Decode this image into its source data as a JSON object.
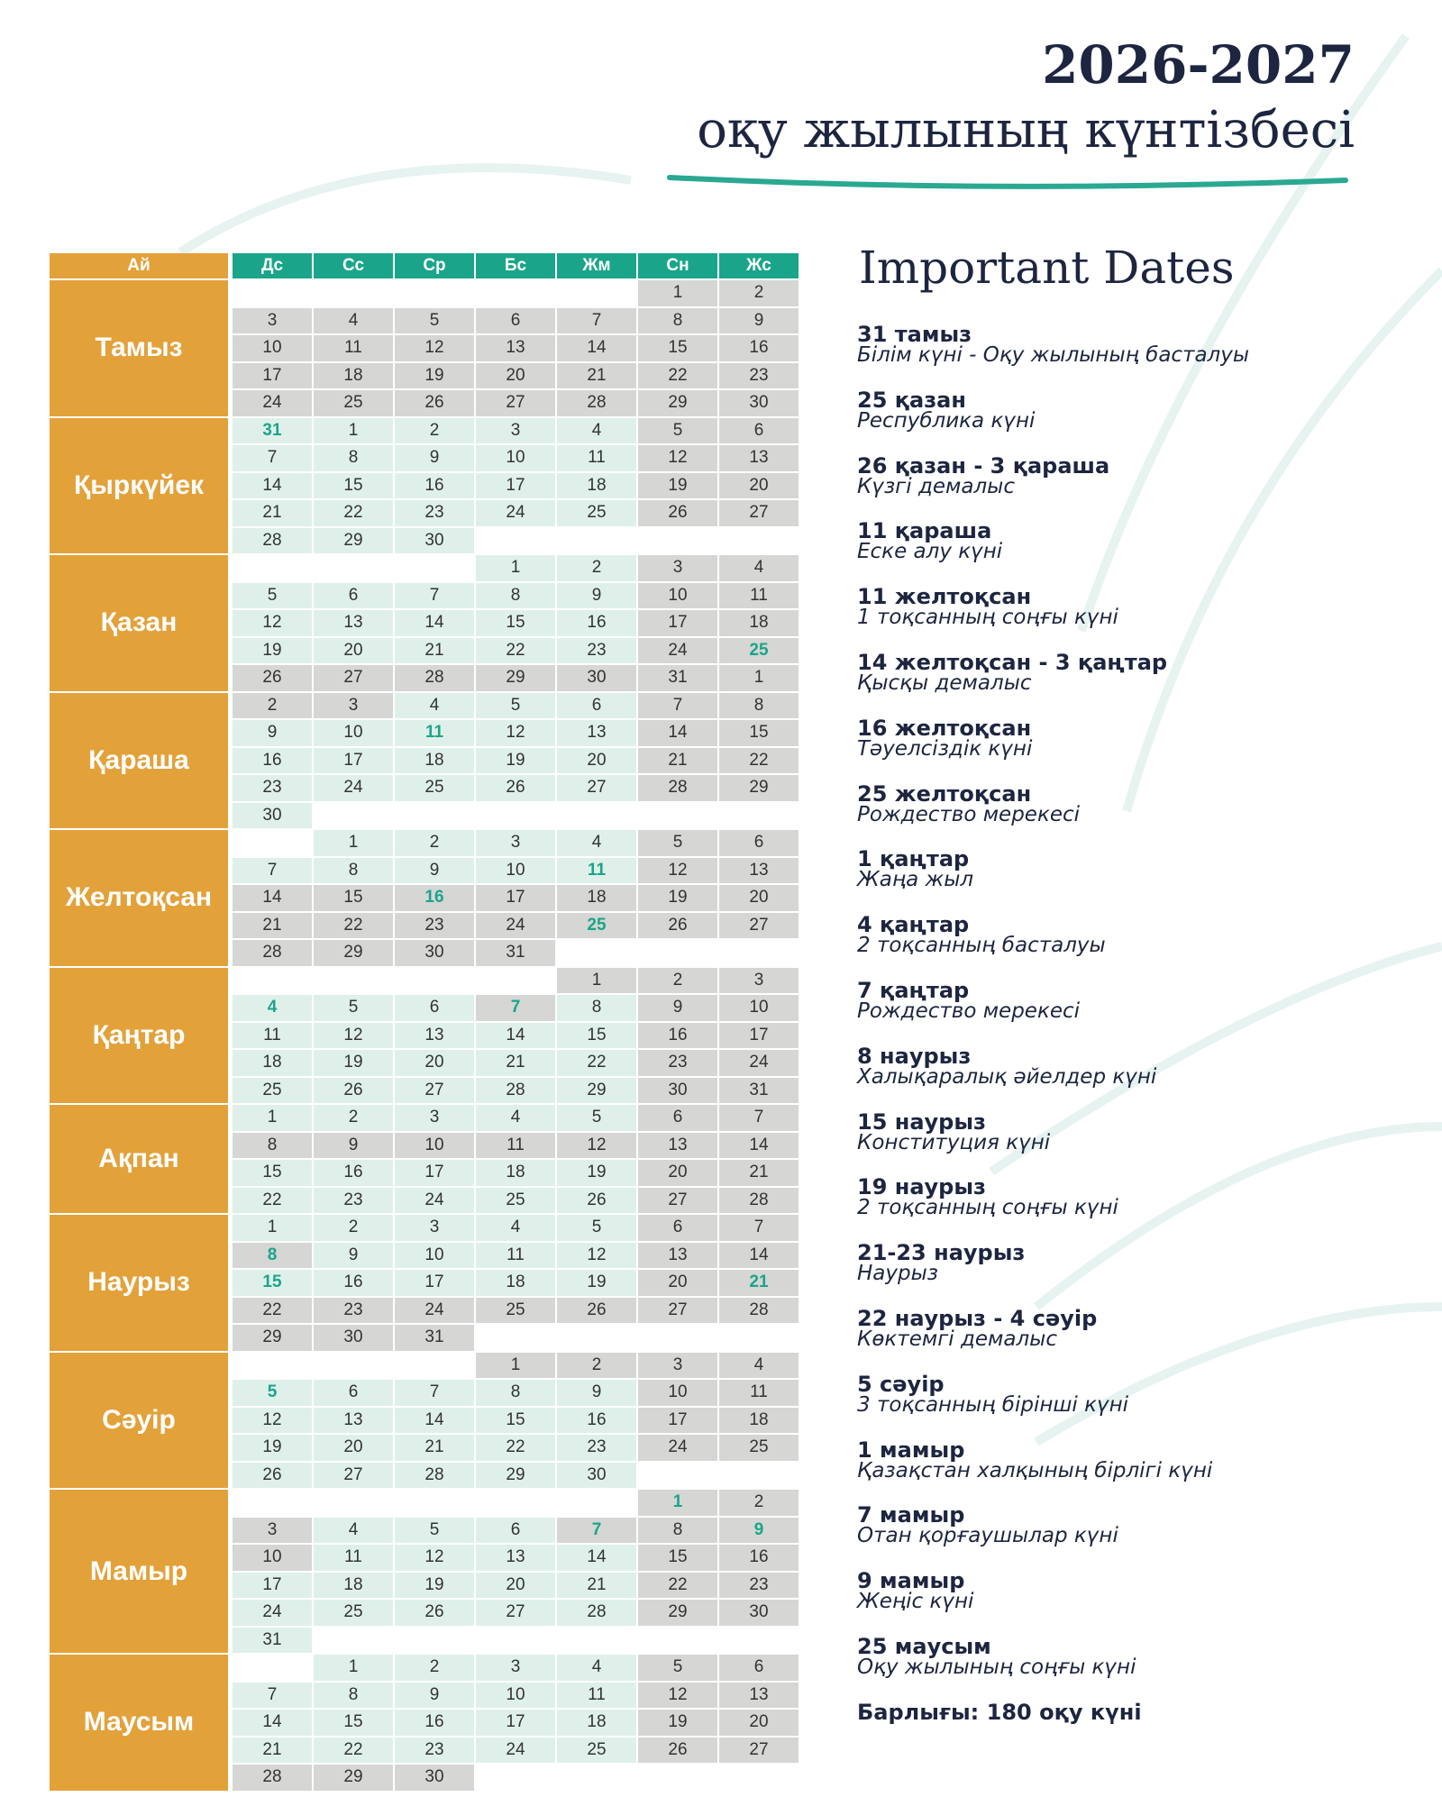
{
  "header": {
    "title_line1": "2026-2027",
    "title_line2": "оқу жылының күнтізбесі"
  },
  "table": {
    "month_header": "Ай",
    "weekdays": [
      "Дс",
      "Сс",
      "Ср",
      "Бс",
      "Жм",
      "Сн",
      "Жс"
    ],
    "palette": {
      "w": "#ffffff",
      "s": "#dff0ea",
      "g": "#d6d6d4",
      "S": "#dff0ea",
      "G": "#d6d6d4"
    },
    "highlight_color": "#1aa58a",
    "month_color": "#e3a13a",
    "header_color": "#1aa58a",
    "months": [
      {
        "name": "Тамыз",
        "rows": [
          [
            null,
            null,
            null,
            null,
            null,
            1,
            2
          ],
          [
            3,
            4,
            5,
            6,
            7,
            8,
            9
          ],
          [
            10,
            11,
            12,
            13,
            14,
            15,
            16
          ],
          [
            17,
            18,
            19,
            20,
            21,
            22,
            23
          ],
          [
            24,
            25,
            26,
            27,
            28,
            29,
            30
          ]
        ],
        "fill": [
          "wwwwwgg",
          "ggggggg",
          "ggggggg",
          "ggggggg",
          "ggggggg"
        ]
      },
      {
        "name": "Қыркүйек",
        "rows": [
          [
            31,
            1,
            2,
            3,
            4,
            5,
            6
          ],
          [
            7,
            8,
            9,
            10,
            11,
            12,
            13
          ],
          [
            14,
            15,
            16,
            17,
            18,
            19,
            20
          ],
          [
            21,
            22,
            23,
            24,
            25,
            26,
            27
          ],
          [
            28,
            29,
            30,
            null,
            null,
            null,
            null
          ]
        ],
        "fill": [
          "Sssssgg",
          "sssssgg",
          "sssssgg",
          "sssssgg",
          "ssswwww"
        ]
      },
      {
        "name": "Қазан",
        "rows": [
          [
            null,
            null,
            null,
            1,
            2,
            3,
            4
          ],
          [
            5,
            6,
            7,
            8,
            9,
            10,
            11
          ],
          [
            12,
            13,
            14,
            15,
            16,
            17,
            18
          ],
          [
            19,
            20,
            21,
            22,
            23,
            24,
            25
          ],
          [
            26,
            27,
            28,
            29,
            30,
            31,
            1
          ]
        ],
        "fill": [
          "wwwssgg",
          "sssssgg",
          "sssssgg",
          "sssssgG",
          "ggggggg"
        ]
      },
      {
        "name": "Қараша",
        "rows": [
          [
            2,
            3,
            4,
            5,
            6,
            7,
            8
          ],
          [
            9,
            10,
            11,
            12,
            13,
            14,
            15
          ],
          [
            16,
            17,
            18,
            19,
            20,
            21,
            22
          ],
          [
            23,
            24,
            25,
            26,
            27,
            28,
            29
          ],
          [
            30,
            null,
            null,
            null,
            null,
            null,
            null
          ]
        ],
        "fill": [
          "ggsssgg",
          "ssSssgg",
          "sssssgg",
          "sssssgg",
          "swwwwww"
        ]
      },
      {
        "name": "Желтоқсан",
        "rows": [
          [
            null,
            1,
            2,
            3,
            4,
            5,
            6
          ],
          [
            7,
            8,
            9,
            10,
            11,
            12,
            13
          ],
          [
            14,
            15,
            16,
            17,
            18,
            19,
            20
          ],
          [
            21,
            22,
            23,
            24,
            25,
            26,
            27
          ],
          [
            28,
            29,
            30,
            31,
            null,
            null,
            null
          ]
        ],
        "fill": [
          "wssssgg",
          "ssssSgg",
          "ggGgggg",
          "ggggGgg",
          "ggggwww"
        ]
      },
      {
        "name": "Қаңтар",
        "rows": [
          [
            null,
            null,
            null,
            null,
            1,
            2,
            3
          ],
          [
            4,
            5,
            6,
            7,
            8,
            9,
            10
          ],
          [
            11,
            12,
            13,
            14,
            15,
            16,
            17
          ],
          [
            18,
            19,
            20,
            21,
            22,
            23,
            24
          ],
          [
            25,
            26,
            27,
            28,
            29,
            30,
            31
          ]
        ],
        "fill": [
          "wwwwggg",
          "SssGsgg",
          "sssssgg",
          "sssssgg",
          "sssssgg"
        ]
      },
      {
        "name": "Ақпан",
        "rows": [
          [
            1,
            2,
            3,
            4,
            5,
            6,
            7
          ],
          [
            8,
            9,
            10,
            11,
            12,
            13,
            14
          ],
          [
            15,
            16,
            17,
            18,
            19,
            20,
            21
          ],
          [
            22,
            23,
            24,
            25,
            26,
            27,
            28
          ]
        ],
        "fill": [
          "sssssgg",
          "ggggggg",
          "sssssgg",
          "sssssgg"
        ]
      },
      {
        "name": "Наурыз",
        "rows": [
          [
            1,
            2,
            3,
            4,
            5,
            6,
            7
          ],
          [
            8,
            9,
            10,
            11,
            12,
            13,
            14
          ],
          [
            15,
            16,
            17,
            18,
            19,
            20,
            21
          ],
          [
            22,
            23,
            24,
            25,
            26,
            27,
            28
          ],
          [
            29,
            30,
            31,
            null,
            null,
            null,
            null
          ]
        ],
        "fill": [
          "sssssgg",
          "Gssssgg",
          "SssssgG",
          "ggggggg",
          "gggwwww"
        ]
      },
      {
        "name": "Сәуір",
        "rows": [
          [
            null,
            null,
            null,
            1,
            2,
            3,
            4
          ],
          [
            5,
            6,
            7,
            8,
            9,
            10,
            11
          ],
          [
            12,
            13,
            14,
            15,
            16,
            17,
            18
          ],
          [
            19,
            20,
            21,
            22,
            23,
            24,
            25
          ],
          [
            26,
            27,
            28,
            29,
            30,
            null,
            null
          ]
        ],
        "fill": [
          "wwwgggg",
          "Sssssgg",
          "sssssgg",
          "sssssgg",
          "sssssww"
        ]
      },
      {
        "name": "Мамыр",
        "rows": [
          [
            null,
            null,
            null,
            null,
            null,
            1,
            2
          ],
          [
            3,
            4,
            5,
            6,
            7,
            8,
            9
          ],
          [
            10,
            11,
            12,
            13,
            14,
            15,
            16
          ],
          [
            17,
            18,
            19,
            20,
            21,
            22,
            23
          ],
          [
            24,
            25,
            26,
            27,
            28,
            29,
            30
          ],
          [
            31,
            null,
            null,
            null,
            null,
            null,
            null
          ]
        ],
        "fill": [
          "wwwwwGg",
          "gsssGgG",
          "gssssgg",
          "sssssgg",
          "sssssgg",
          "swwwwww"
        ]
      },
      {
        "name": "Маусым",
        "rows": [
          [
            null,
            1,
            2,
            3,
            4,
            5,
            6
          ],
          [
            7,
            8,
            9,
            10,
            11,
            12,
            13
          ],
          [
            14,
            15,
            16,
            17,
            18,
            19,
            20
          ],
          [
            21,
            22,
            23,
            24,
            25,
            26,
            27
          ],
          [
            28,
            29,
            30,
            null,
            null,
            null,
            null
          ]
        ],
        "fill": [
          "wssssgg",
          "sssssgg",
          "sssssgg",
          "sssssgg",
          "gggwwww"
        ]
      }
    ]
  },
  "important": {
    "title": "Important Dates",
    "items": [
      {
        "date": "31 тамыз",
        "desc": "Білім күні - Оқу жылының басталуы"
      },
      {
        "date": "25 қазан",
        "desc": "Республика күні"
      },
      {
        "date": "26 қазан - 3 қараша",
        "desc": "Күзгі демалыс"
      },
      {
        "date": "11 қараша",
        "desc": "Еске алу күні"
      },
      {
        "date": "11 желтоқсан",
        "desc": "1 тоқсанның соңғы күні"
      },
      {
        "date": "14 желтоқсан - 3 қаңтар",
        "desc": "Қысқы демалыс"
      },
      {
        "date": "16 желтоқсан",
        "desc": "Тәуелсіздік күні"
      },
      {
        "date": "25 желтоқсан",
        "desc": "Рождество мерекесі"
      },
      {
        "date": "1 қаңтар",
        "desc": "Жаңа жыл"
      },
      {
        "date": "4 қаңтар",
        "desc": "2 тоқсанның басталуы"
      },
      {
        "date": "7 қаңтар",
        "desc": "Рождество мерекесі"
      },
      {
        "date": "8 наурыз",
        "desc": "Халықаралық әйелдер күні"
      },
      {
        "date": "15 наурыз",
        "desc": "Конституция күні"
      },
      {
        "date": "19 наурыз",
        "desc": "2 тоқсанның соңғы күні"
      },
      {
        "date": "21-23 наурыз",
        "desc": "Наурыз"
      },
      {
        "date": "22 наурыз - 4 сәуір",
        "desc": "Көктемгі демалыс"
      },
      {
        "date": "5 сәуір",
        "desc": "3 тоқсанның бірінші күні"
      },
      {
        "date": "1 мамыр",
        "desc": "Қазақстан халқының бірлігі күні"
      },
      {
        "date": "7 мамыр",
        "desc": "Отан қорғаушылар күні"
      },
      {
        "date": "9 мамыр",
        "desc": "Жеңіс күні"
      },
      {
        "date": "25 маусым",
        "desc": "Оқу жылының соңғы күні"
      }
    ],
    "total": "Барлығы: 180 оқу күні"
  }
}
